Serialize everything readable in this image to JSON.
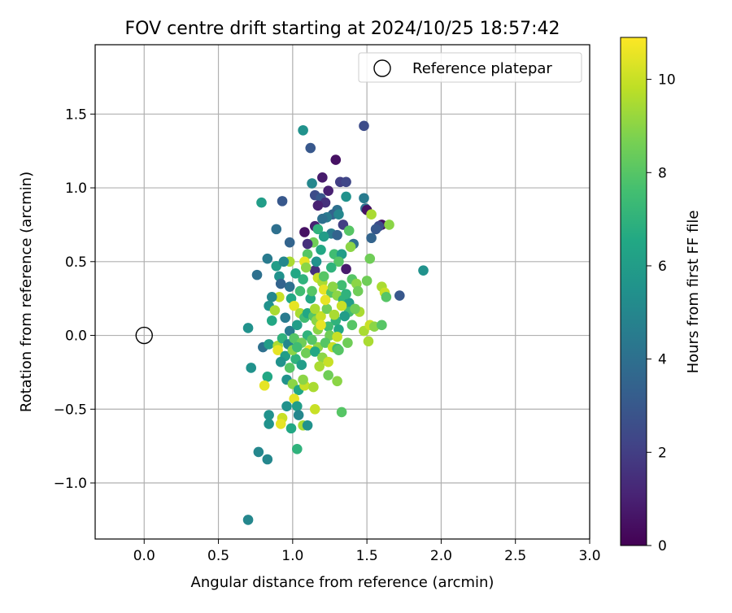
{
  "chart_data": {
    "type": "scatter",
    "title": "FOV centre drift starting at 2024/10/25 18:57:42",
    "xlabel": "Angular distance from reference (arcmin)",
    "ylabel": "Rotation from reference (arcmin)",
    "xlim": [
      -0.33,
      3.0
    ],
    "ylim": [
      -1.38,
      1.97
    ],
    "xticks": [
      0.0,
      0.5,
      1.0,
      1.5,
      2.0,
      2.5,
      3.0
    ],
    "xtick_labels": [
      "0.0",
      "0.5",
      "1.0",
      "1.5",
      "2.0",
      "2.5",
      "3.0"
    ],
    "yticks": [
      -1.0,
      -0.5,
      0.0,
      0.5,
      1.0,
      1.5
    ],
    "ytick_labels": [
      "−1.0",
      "−0.5",
      "0.0",
      "0.5",
      "1.0",
      "1.5"
    ],
    "grid": true,
    "legend": {
      "placement": "upper-right",
      "entries": [
        "Reference platepar"
      ]
    },
    "reference_point": {
      "x": 0.0,
      "y": 0.0,
      "marker": "open-circle",
      "label": "Reference platepar"
    },
    "colorbar": {
      "label": "Hours from first FF file",
      "colormap": "viridis",
      "range": [
        0,
        10.9
      ],
      "ticks": [
        0,
        2,
        4,
        6,
        8,
        10
      ],
      "tick_labels": [
        "0",
        "2",
        "4",
        "6",
        "8",
        "10"
      ]
    },
    "points": [
      [
        1.48,
        1.42,
        2.5
      ],
      [
        1.07,
        1.39,
        5.5
      ],
      [
        1.12,
        1.27,
        3.0
      ],
      [
        1.29,
        1.19,
        0.5
      ],
      [
        1.13,
        1.03,
        5.0
      ],
      [
        1.2,
        1.07,
        0.8
      ],
      [
        1.32,
        1.04,
        2.0
      ],
      [
        1.36,
        1.04,
        2.3
      ],
      [
        1.24,
        0.98,
        1.0
      ],
      [
        1.15,
        0.95,
        2.5
      ],
      [
        1.19,
        0.93,
        3.0
      ],
      [
        1.22,
        0.9,
        1.5
      ],
      [
        1.36,
        0.94,
        5.5
      ],
      [
        0.93,
        0.91,
        3.0
      ],
      [
        0.79,
        0.9,
        6.0
      ],
      [
        1.48,
        0.93,
        4.5
      ],
      [
        1.49,
        0.86,
        4.0
      ],
      [
        1.5,
        0.85,
        0.5
      ],
      [
        1.3,
        0.85,
        4.0
      ],
      [
        1.17,
        0.88,
        1.0
      ],
      [
        1.27,
        0.82,
        3.5
      ],
      [
        1.31,
        0.82,
        5.0
      ],
      [
        1.23,
        0.8,
        4.5
      ],
      [
        1.2,
        0.79,
        4.0
      ],
      [
        1.53,
        0.82,
        9.5
      ],
      [
        1.6,
        0.75,
        0.5
      ],
      [
        1.58,
        0.74,
        2.5
      ],
      [
        1.65,
        0.75,
        9.0
      ],
      [
        1.56,
        0.72,
        3.0
      ],
      [
        1.53,
        0.66,
        3.5
      ],
      [
        1.34,
        0.75,
        2.0
      ],
      [
        1.15,
        0.74,
        1.0
      ],
      [
        1.17,
        0.72,
        7.0
      ],
      [
        1.38,
        0.71,
        8.0
      ],
      [
        1.26,
        0.69,
        4.5
      ],
      [
        1.3,
        0.68,
        3.5
      ],
      [
        1.21,
        0.67,
        6.0
      ],
      [
        1.08,
        0.7,
        0.5
      ],
      [
        0.89,
        0.72,
        4.0
      ],
      [
        1.41,
        0.62,
        4.0
      ],
      [
        1.39,
        0.6,
        9.0
      ],
      [
        1.14,
        0.63,
        8.5
      ],
      [
        0.98,
        0.63,
        3.5
      ],
      [
        1.1,
        0.62,
        1.5
      ],
      [
        1.19,
        0.58,
        6.5
      ],
      [
        1.1,
        0.55,
        8.0
      ],
      [
        1.28,
        0.55,
        7.5
      ],
      [
        1.33,
        0.55,
        6.0
      ],
      [
        1.31,
        0.5,
        8.0
      ],
      [
        1.26,
        0.46,
        7.0
      ],
      [
        1.36,
        0.45,
        0.8
      ],
      [
        1.52,
        0.52,
        8.5
      ],
      [
        1.15,
        0.44,
        1.5
      ],
      [
        0.83,
        0.52,
        4.5
      ],
      [
        0.98,
        0.5,
        9.5
      ],
      [
        1.08,
        0.5,
        10.5
      ],
      [
        0.89,
        0.47,
        6.0
      ],
      [
        0.94,
        0.5,
        5.0
      ],
      [
        0.76,
        0.41,
        4.0
      ],
      [
        1.4,
        0.38,
        8.0
      ],
      [
        1.43,
        0.35,
        9.0
      ],
      [
        1.5,
        0.37,
        8.5
      ],
      [
        1.6,
        0.33,
        9.5
      ],
      [
        1.62,
        0.29,
        10.0
      ],
      [
        1.72,
        0.27,
        3.0
      ],
      [
        1.63,
        0.26,
        8.0
      ],
      [
        1.88,
        0.44,
        5.5
      ],
      [
        0.91,
        0.4,
        5.5
      ],
      [
        0.98,
        0.33,
        4.0
      ],
      [
        0.92,
        0.35,
        3.5
      ],
      [
        0.99,
        0.25,
        6.5
      ],
      [
        1.17,
        0.39,
        10.0
      ],
      [
        1.2,
        0.36,
        9.5
      ],
      [
        1.21,
        0.31,
        10.5
      ],
      [
        1.33,
        0.34,
        7.5
      ],
      [
        1.26,
        0.29,
        8.0
      ],
      [
        1.3,
        0.27,
        9.0
      ],
      [
        1.34,
        0.24,
        7.0
      ],
      [
        1.38,
        0.22,
        6.0
      ],
      [
        1.44,
        0.3,
        8.5
      ],
      [
        1.45,
        0.16,
        9.5
      ],
      [
        1.38,
        0.16,
        7.5
      ],
      [
        0.91,
        0.26,
        10.0
      ],
      [
        0.86,
        0.26,
        5.0
      ],
      [
        0.84,
        0.2,
        5.5
      ],
      [
        1.01,
        0.2,
        10.5
      ],
      [
        1.05,
        0.15,
        9.5
      ],
      [
        1.08,
        0.12,
        7.5
      ],
      [
        1.1,
        0.15,
        6.5
      ],
      [
        1.14,
        0.13,
        8.0
      ],
      [
        1.16,
        0.1,
        9.0
      ],
      [
        1.19,
        0.13,
        10.0
      ],
      [
        1.23,
        0.18,
        8.5
      ],
      [
        1.29,
        0.1,
        7.0
      ],
      [
        1.35,
        0.13,
        6.0
      ],
      [
        1.4,
        0.07,
        8.0
      ],
      [
        1.48,
        0.03,
        9.5
      ],
      [
        1.52,
        0.07,
        10.0
      ],
      [
        1.55,
        0.06,
        9.0
      ],
      [
        1.6,
        0.07,
        8.0
      ],
      [
        0.86,
        0.1,
        6.5
      ],
      [
        0.88,
        0.17,
        9.5
      ],
      [
        0.98,
        0.03,
        4.5
      ],
      [
        1.03,
        0.07,
        6.0
      ],
      [
        1.1,
        0.0,
        7.0
      ],
      [
        1.17,
        0.04,
        9.0
      ],
      [
        1.24,
        0.06,
        7.5
      ],
      [
        1.31,
        0.04,
        6.5
      ],
      [
        1.25,
        0.0,
        8.5
      ],
      [
        1.3,
        -0.01,
        10.0
      ],
      [
        0.7,
        0.05,
        5.5
      ],
      [
        0.8,
        -0.08,
        4.0
      ],
      [
        0.84,
        -0.06,
        6.0
      ],
      [
        0.9,
        -0.07,
        9.5
      ],
      [
        0.93,
        -0.02,
        7.0
      ],
      [
        0.97,
        -0.06,
        5.0
      ],
      [
        1.01,
        -0.02,
        8.0
      ],
      [
        1.06,
        -0.05,
        8.5
      ],
      [
        1.11,
        -0.1,
        10.5
      ],
      [
        1.17,
        -0.08,
        9.0
      ],
      [
        1.22,
        -0.05,
        8.0
      ],
      [
        1.27,
        -0.08,
        10.0
      ],
      [
        1.3,
        -0.09,
        7.5
      ],
      [
        1.37,
        -0.05,
        8.5
      ],
      [
        1.51,
        -0.04,
        9.5
      ],
      [
        0.9,
        -0.1,
        10.5
      ],
      [
        0.95,
        -0.14,
        6.0
      ],
      [
        1.02,
        -0.16,
        7.0
      ],
      [
        1.09,
        -0.12,
        8.5
      ],
      [
        1.15,
        -0.11,
        6.5
      ],
      [
        1.2,
        -0.15,
        9.0
      ],
      [
        1.24,
        -0.18,
        10.0
      ],
      [
        1.31,
        -0.1,
        8.0
      ],
      [
        0.92,
        -0.18,
        5.5
      ],
      [
        0.98,
        -0.22,
        8.0
      ],
      [
        1.06,
        -0.2,
        6.0
      ],
      [
        1.18,
        -0.21,
        9.5
      ],
      [
        1.24,
        -0.27,
        8.5
      ],
      [
        1.3,
        -0.31,
        9.0
      ],
      [
        0.72,
        -0.22,
        5.5
      ],
      [
        0.83,
        -0.28,
        6.5
      ],
      [
        0.96,
        -0.3,
        5.5
      ],
      [
        1.0,
        -0.33,
        9.0
      ],
      [
        1.04,
        -0.37,
        6.5
      ],
      [
        1.08,
        -0.34,
        10.0
      ],
      [
        1.14,
        -0.35,
        9.5
      ],
      [
        1.07,
        -0.3,
        9.0
      ],
      [
        0.81,
        -0.34,
        10.5
      ],
      [
        1.01,
        -0.43,
        10.5
      ],
      [
        0.96,
        -0.48,
        5.5
      ],
      [
        1.03,
        -0.48,
        6.0
      ],
      [
        1.15,
        -0.5,
        10.0
      ],
      [
        1.33,
        -0.52,
        8.0
      ],
      [
        0.84,
        -0.54,
        5.5
      ],
      [
        0.93,
        -0.56,
        10.0
      ],
      [
        1.04,
        -0.54,
        5.0
      ],
      [
        0.92,
        -0.6,
        10.5
      ],
      [
        0.84,
        -0.6,
        5.5
      ],
      [
        1.07,
        -0.61,
        9.5
      ],
      [
        0.99,
        -0.63,
        6.5
      ],
      [
        1.1,
        -0.61,
        5.5
      ],
      [
        1.03,
        -0.77,
        7.0
      ],
      [
        0.77,
        -0.79,
        5.0
      ],
      [
        0.83,
        -0.84,
        5.0
      ],
      [
        0.7,
        -1.25,
        5.0
      ],
      [
        1.0,
        -0.1,
        9.0
      ],
      [
        1.05,
        0.3,
        7.5
      ],
      [
        1.12,
        0.25,
        6.5
      ],
      [
        1.15,
        0.18,
        9.5
      ],
      [
        1.22,
        0.24,
        10.5
      ],
      [
        1.27,
        0.33,
        9.0
      ],
      [
        1.13,
        0.3,
        8.0
      ],
      [
        1.07,
        0.38,
        7.0
      ],
      [
        1.02,
        0.42,
        6.5
      ],
      [
        0.95,
        0.12,
        4.5
      ],
      [
        1.09,
        0.46,
        9.0
      ],
      [
        1.16,
        0.5,
        5.5
      ],
      [
        1.21,
        0.4,
        8.0
      ],
      [
        1.36,
        0.28,
        7.0
      ],
      [
        1.42,
        0.18,
        8.5
      ],
      [
        1.33,
        0.2,
        10.0
      ],
      [
        1.28,
        0.14,
        9.5
      ],
      [
        1.19,
        0.07,
        10.5
      ],
      [
        1.13,
        -0.03,
        8.0
      ],
      [
        1.03,
        -0.08,
        7.5
      ]
    ]
  }
}
